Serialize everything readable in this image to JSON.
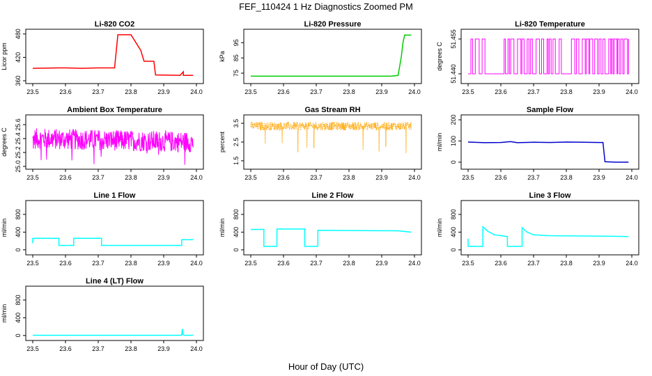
{
  "figure": {
    "title": "FEF_110424  1 Hz Diagnostics Zoomed PM",
    "xlabel": "Hour of Day (UTC)"
  },
  "chart_data": [
    {
      "type": "line",
      "title": "Li-820 CO2",
      "ylabel": "Licor ppm",
      "color": "#ff0000",
      "xlim": [
        23.5,
        24.0
      ],
      "ylim": [
        360,
        485
      ],
      "yticks": [
        "360",
        "420",
        "480"
      ],
      "ytick_values": [
        360,
        420,
        480
      ],
      "xticks": [
        "23.5",
        "23.6",
        "23.7",
        "23.8",
        "23.9",
        "24.0"
      ],
      "x": [
        23.5,
        23.58,
        23.6,
        23.65,
        23.7,
        23.75,
        23.76,
        23.8,
        23.83,
        23.84,
        23.87,
        23.875,
        23.95,
        23.96,
        23.96,
        23.99
      ],
      "y": [
        392,
        393,
        393,
        392,
        393,
        393,
        478,
        478,
        438,
        410,
        410,
        375,
        374,
        383,
        374,
        374
      ]
    },
    {
      "type": "line",
      "title": "Li-820 Pressure",
      "ylabel": "kPa",
      "color": "#00cc00",
      "xlim": [
        23.5,
        24.0
      ],
      "ylim": [
        70,
        102
      ],
      "yticks": [
        "75",
        "85",
        "95"
      ],
      "ytick_values": [
        75,
        85,
        95
      ],
      "xticks": [
        "23.5",
        "23.6",
        "23.7",
        "23.8",
        "23.9",
        "24.0"
      ],
      "x": [
        23.5,
        23.93,
        23.95,
        23.96,
        23.965,
        23.97,
        23.99
      ],
      "y": [
        73,
        73,
        73.5,
        86,
        95,
        100,
        100
      ]
    },
    {
      "type": "line",
      "title": "Li-820 Temperature",
      "ylabel": "degrees C",
      "color": "#ff00ff",
      "xlim": [
        23.5,
        24.0
      ],
      "ylim": [
        51.437,
        51.458
      ],
      "yticks": [
        "51.440",
        "51.455"
      ],
      "ytick_values": [
        51.44,
        51.455
      ],
      "xticks": [
        "23.5",
        "23.6",
        "23.7",
        "23.8",
        "23.9",
        "24.0"
      ],
      "series": [
        {
          "name": "",
          "x": [],
          "y": []
        }
      ]
    },
    {
      "type": "line",
      "title": "Ambient Box Temperature",
      "ylabel": "degrees C",
      "color": "#ff00ff",
      "xlim": [
        23.5,
        24.0
      ],
      "ylim": [
        25.0,
        25.7
      ],
      "yticks": [
        "25.0",
        "25.2",
        "25.4",
        "25.6"
      ],
      "ytick_values": [
        25.0,
        25.2,
        25.4,
        25.6
      ],
      "xticks": [
        "23.5",
        "23.6",
        "23.7",
        "23.8",
        "23.9",
        "24.0"
      ],
      "series": [
        {
          "name": "",
          "x": [],
          "y": []
        }
      ]
    },
    {
      "type": "scatter",
      "title": "Gas Stream RH",
      "ylabel": "percent",
      "color": "#ffa500",
      "xlim": [
        23.5,
        24.0
      ],
      "ylim": [
        1.2,
        3.8
      ],
      "yticks": [
        "1.5",
        "2.5",
        "3.5"
      ],
      "ytick_values": [
        1.5,
        2.5,
        3.5
      ],
      "xticks": [
        "23.5",
        "23.6",
        "23.7",
        "23.8",
        "23.9",
        "24.0"
      ],
      "series": [
        {
          "name": "",
          "x": [],
          "y": []
        }
      ]
    },
    {
      "type": "line",
      "title": "Sample Flow",
      "ylabel": "ml/min",
      "color": "#0000cc",
      "xlim": [
        23.5,
        24.0
      ],
      "ylim": [
        -20,
        210
      ],
      "yticks": [
        "0",
        "100",
        "200"
      ],
      "ytick_values": [
        0,
        100,
        200
      ],
      "xticks": [
        "23.5",
        "23.6",
        "23.7",
        "23.8",
        "23.9",
        "24.0"
      ],
      "x": [
        23.5,
        23.55,
        23.6,
        23.63,
        23.65,
        23.7,
        23.75,
        23.8,
        23.85,
        23.9,
        23.912,
        23.918,
        23.95,
        23.99
      ],
      "y": [
        95,
        92,
        93,
        97,
        92,
        94,
        93,
        95,
        94,
        93,
        93,
        2,
        0,
        0
      ]
    },
    {
      "type": "line",
      "title": "Line 1 Flow",
      "ylabel": "ml/min",
      "color": "#00ffff",
      "xlim": [
        23.5,
        24.0
      ],
      "ylim": [
        -50,
        1050
      ],
      "yticks": [
        "0",
        "400",
        "800"
      ],
      "ytick_values": [
        0,
        400,
        800
      ],
      "xticks": [
        "23.5",
        "23.6",
        "23.7",
        "23.8",
        "23.9",
        "24.0"
      ],
      "x": [
        23.5,
        23.5,
        23.58,
        23.58,
        23.625,
        23.625,
        23.71,
        23.71,
        23.955,
        23.955,
        23.99
      ],
      "y": [
        150,
        260,
        260,
        100,
        100,
        260,
        260,
        100,
        100,
        230,
        230
      ]
    },
    {
      "type": "line",
      "title": "Line 2 Flow",
      "ylabel": "ml/min",
      "color": "#00ffff",
      "xlim": [
        23.5,
        24.0
      ],
      "ylim": [
        -50,
        1050
      ],
      "yticks": [
        "0",
        "400",
        "800"
      ],
      "ytick_values": [
        0,
        400,
        800
      ],
      "xticks": [
        "23.5",
        "23.6",
        "23.7",
        "23.8",
        "23.9",
        "24.0"
      ],
      "x": [
        23.5,
        23.54,
        23.54,
        23.58,
        23.58,
        23.665,
        23.665,
        23.705,
        23.705,
        23.95,
        23.99
      ],
      "y": [
        460,
        460,
        80,
        80,
        470,
        470,
        80,
        80,
        440,
        430,
        400
      ]
    },
    {
      "type": "line",
      "title": "Line 3 Flow",
      "ylabel": "ml/min",
      "color": "#00ffff",
      "xlim": [
        23.5,
        24.0
      ],
      "ylim": [
        -50,
        1050
      ],
      "yticks": [
        "0",
        "400",
        "800"
      ],
      "ytick_values": [
        0,
        400,
        800
      ],
      "xticks": [
        "23.5",
        "23.6",
        "23.7",
        "23.8",
        "23.9",
        "24.0"
      ],
      "x": [
        23.5,
        23.5,
        23.545,
        23.545,
        23.56,
        23.58,
        23.62,
        23.62,
        23.665,
        23.665,
        23.68,
        23.7,
        23.75,
        23.9,
        23.99
      ],
      "y": [
        250,
        80,
        80,
        520,
        420,
        340,
        300,
        80,
        80,
        500,
        400,
        340,
        320,
        310,
        300
      ]
    },
    {
      "type": "line",
      "title": "Line 4 (LT) Flow",
      "ylabel": "ml/min",
      "color": "#00ffff",
      "xlim": [
        23.5,
        24.0
      ],
      "ylim": [
        -50,
        1050
      ],
      "yticks": [
        "0",
        "400",
        "800"
      ],
      "ytick_values": [
        0,
        400,
        800
      ],
      "xticks": [
        "23.5",
        "23.6",
        "23.7",
        "23.8",
        "23.9",
        "24.0"
      ],
      "x": [
        23.5,
        23.955,
        23.957,
        23.959,
        23.962,
        23.99
      ],
      "y": [
        5,
        5,
        150,
        20,
        5,
        5
      ]
    }
  ]
}
